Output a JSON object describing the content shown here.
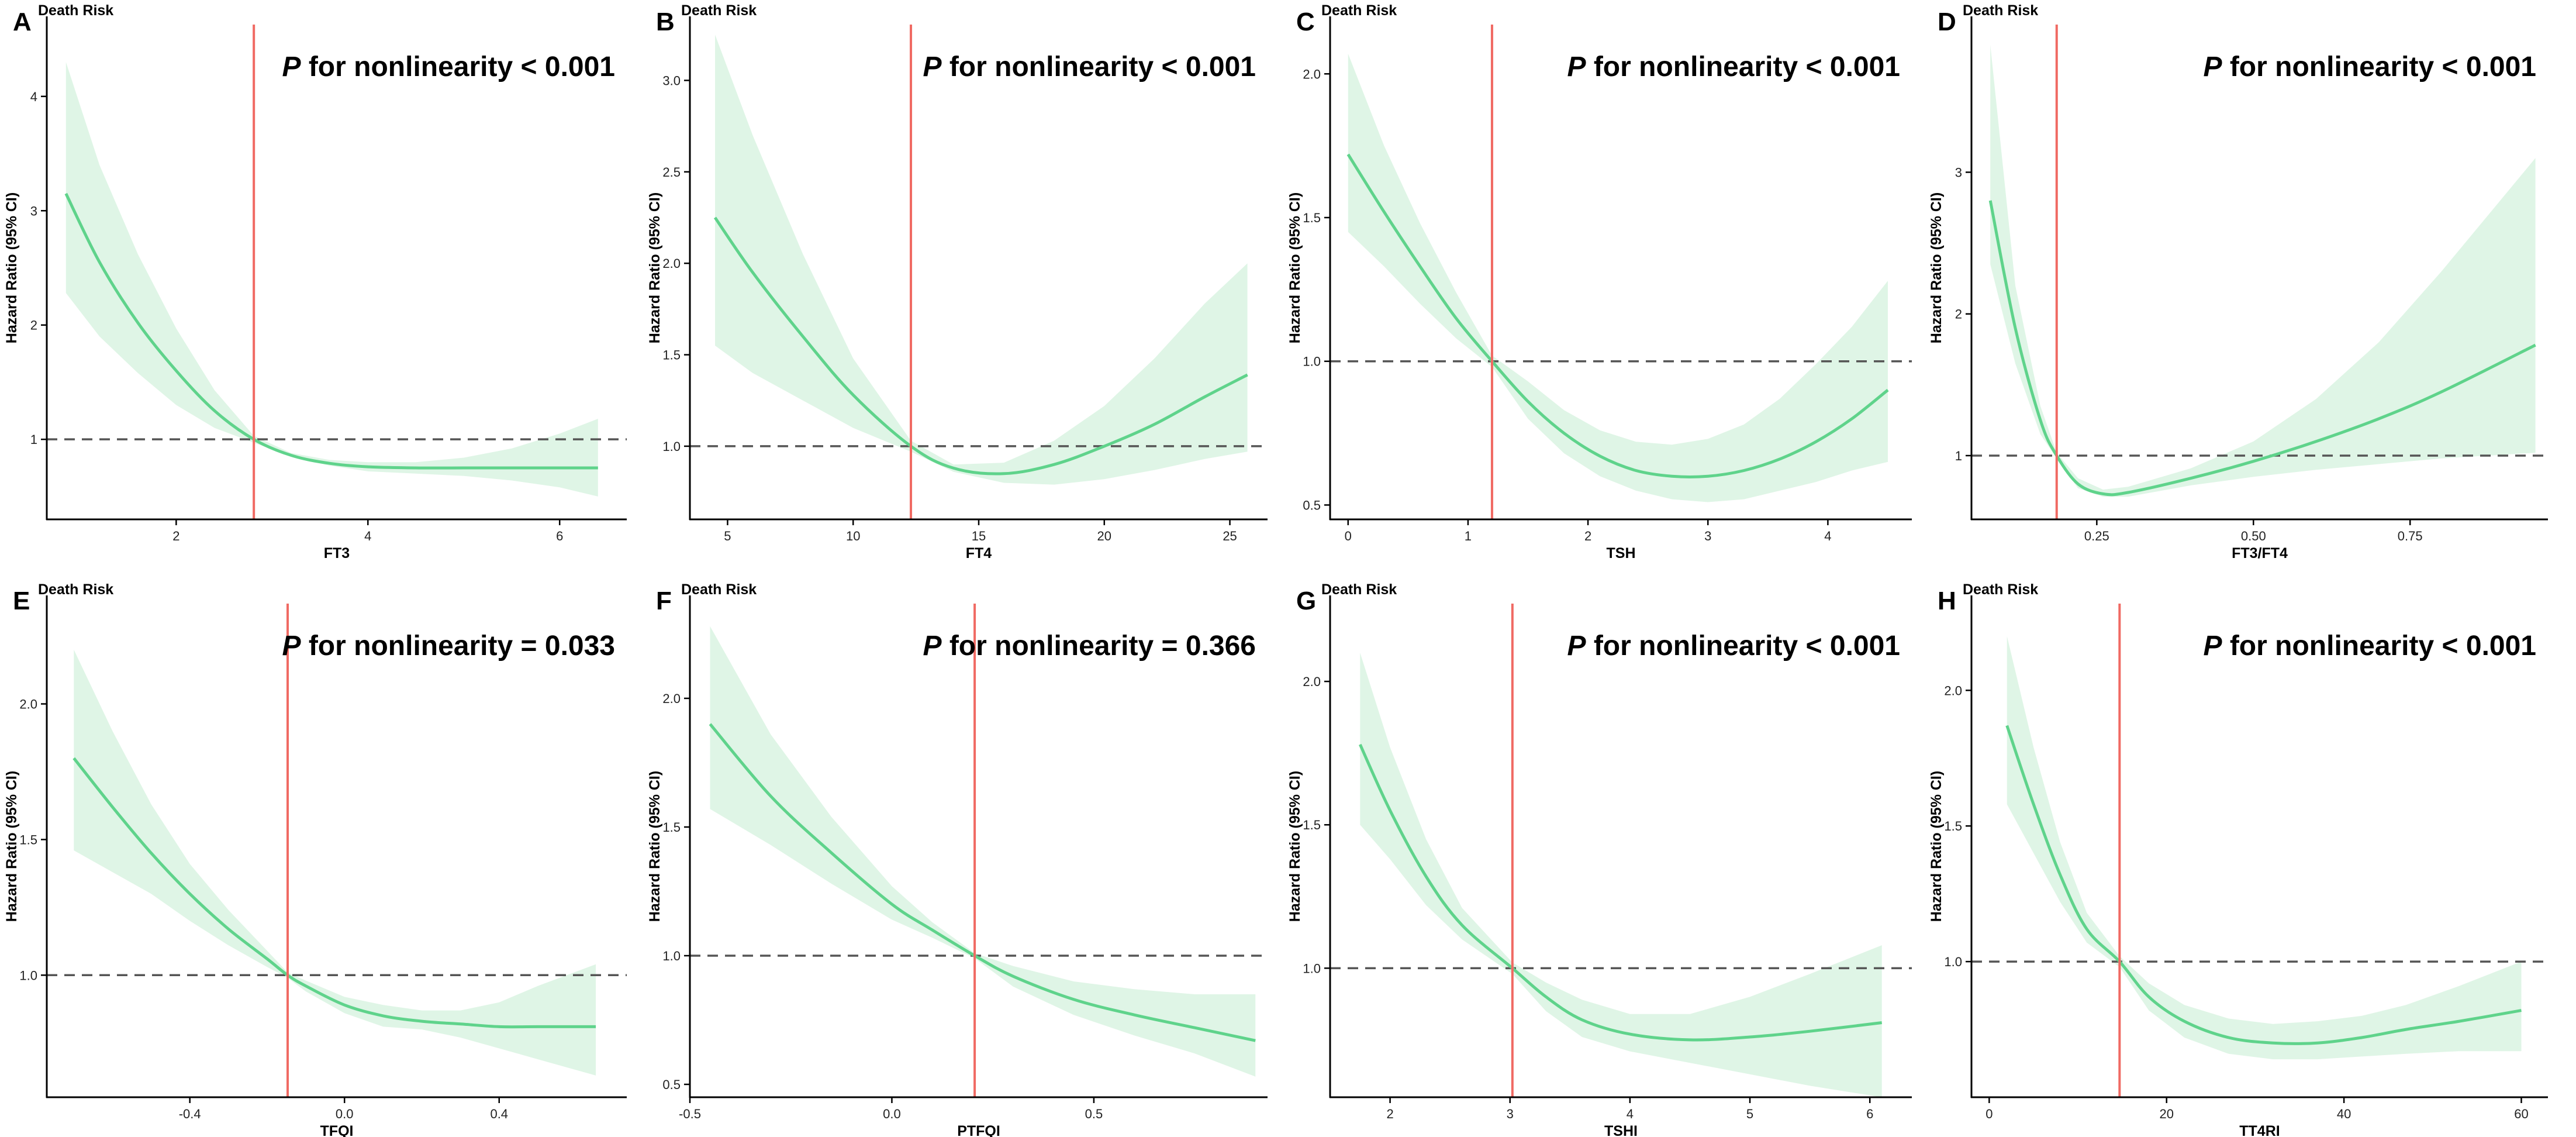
{
  "colors": {
    "curve": "#5fd38b",
    "band": "#dff5e6",
    "cutoff": "#f06a63",
    "reference": "#555555",
    "axis": "#000000"
  },
  "chart_data": [
    {
      "type": "line",
      "letter": "A",
      "title": "Death Risk",
      "xlabel": "FT3",
      "ylabel": "Hazard Ratio (95% CI)",
      "annotation": {
        "italic": "P",
        "text": " for nonlinearity < 0.001"
      },
      "xlim": [
        0.65,
        6.7
      ],
      "ylim": [
        0.3,
        4.7
      ],
      "xticks": [
        2,
        4,
        6
      ],
      "xtick_labels": [
        "2",
        "4",
        "6"
      ],
      "yticks": [
        1,
        2,
        3,
        4
      ],
      "ytick_labels": [
        "1",
        "2",
        "3",
        "4"
      ],
      "reference_y": 1.0,
      "cutoff_x": 2.81,
      "x": [
        0.85,
        1.2,
        1.6,
        2.0,
        2.4,
        2.81,
        3.2,
        3.6,
        4.0,
        4.5,
        5.0,
        5.5,
        6.0,
        6.4
      ],
      "y": [
        3.15,
        2.55,
        2.02,
        1.6,
        1.25,
        1.0,
        0.86,
        0.79,
        0.76,
        0.75,
        0.75,
        0.75,
        0.75,
        0.75
      ],
      "lower": [
        2.28,
        1.9,
        1.58,
        1.3,
        1.1,
        0.97,
        0.85,
        0.77,
        0.72,
        0.7,
        0.68,
        0.64,
        0.58,
        0.5
      ],
      "upper": [
        4.3,
        3.4,
        2.62,
        1.97,
        1.43,
        1.03,
        0.88,
        0.82,
        0.8,
        0.8,
        0.84,
        0.92,
        1.05,
        1.18
      ]
    },
    {
      "type": "line",
      "letter": "B",
      "title": "Death Risk",
      "xlabel": "FT4",
      "ylabel": "Hazard Ratio (95% CI)",
      "annotation": {
        "italic": "P",
        "text": " for nonlinearity < 0.001"
      },
      "xlim": [
        3.5,
        26.5
      ],
      "ylim": [
        0.6,
        3.35
      ],
      "xticks": [
        5,
        10,
        15,
        20,
        25
      ],
      "xtick_labels": [
        "5",
        "10",
        "15",
        "20",
        "25"
      ],
      "yticks": [
        1.0,
        1.5,
        2.0,
        2.5,
        3.0
      ],
      "ytick_labels": [
        "1.0",
        "1.5",
        "2.0",
        "2.5",
        "3.0"
      ],
      "reference_y": 1.0,
      "cutoff_x": 12.3,
      "x": [
        4.5,
        6,
        8,
        10,
        12.3,
        14,
        16,
        18,
        20,
        22,
        24,
        25.7
      ],
      "y": [
        2.25,
        1.95,
        1.6,
        1.28,
        1.0,
        0.88,
        0.85,
        0.9,
        1.0,
        1.12,
        1.27,
        1.39
      ],
      "lower": [
        1.55,
        1.4,
        1.25,
        1.1,
        0.97,
        0.86,
        0.8,
        0.79,
        0.82,
        0.87,
        0.93,
        0.97
      ],
      "upper": [
        3.25,
        2.7,
        2.05,
        1.48,
        1.03,
        0.9,
        0.91,
        1.03,
        1.22,
        1.48,
        1.78,
        2.0
      ]
    },
    {
      "type": "line",
      "letter": "C",
      "title": "Death Risk",
      "xlabel": "TSH",
      "ylabel": "Hazard Ratio (95% CI)",
      "annotation": {
        "italic": "P",
        "text": " for nonlinearity < 0.001"
      },
      "xlim": [
        -0.15,
        4.7
      ],
      "ylim": [
        0.45,
        2.2
      ],
      "xticks": [
        0,
        1,
        2,
        3,
        4
      ],
      "xtick_labels": [
        "0",
        "1",
        "2",
        "3",
        "4"
      ],
      "yticks": [
        0.5,
        1.0,
        1.5,
        2.0
      ],
      "ytick_labels": [
        "0.5",
        "1.0",
        "1.5",
        "2.0"
      ],
      "reference_y": 1.0,
      "cutoff_x": 1.2,
      "x": [
        0,
        0.3,
        0.6,
        0.9,
        1.2,
        1.5,
        1.8,
        2.1,
        2.4,
        2.7,
        3.0,
        3.3,
        3.6,
        3.9,
        4.2,
        4.5
      ],
      "y": [
        1.72,
        1.52,
        1.33,
        1.15,
        1.0,
        0.86,
        0.75,
        0.67,
        0.62,
        0.6,
        0.6,
        0.62,
        0.66,
        0.72,
        0.8,
        0.9
      ],
      "lower": [
        1.45,
        1.33,
        1.2,
        1.08,
        0.98,
        0.8,
        0.68,
        0.6,
        0.55,
        0.52,
        0.51,
        0.52,
        0.55,
        0.58,
        0.62,
        0.65
      ],
      "upper": [
        2.07,
        1.75,
        1.48,
        1.24,
        1.02,
        0.93,
        0.83,
        0.76,
        0.72,
        0.71,
        0.73,
        0.78,
        0.87,
        0.99,
        1.12,
        1.28
      ]
    },
    {
      "type": "line",
      "letter": "D",
      "title": "Death Risk",
      "xlabel": "FT3/FT4",
      "ylabel": "Hazard Ratio (95% CI)",
      "annotation": {
        "italic": "P",
        "text": " for nonlinearity < 0.001"
      },
      "xlim": [
        0.05,
        0.97
      ],
      "ylim": [
        0.55,
        4.1
      ],
      "xticks": [
        0.25,
        0.5,
        0.75
      ],
      "xtick_labels": [
        "0.25",
        "0.50",
        "0.75"
      ],
      "yticks": [
        1,
        2,
        3
      ],
      "ytick_labels": [
        "1",
        "2",
        "3"
      ],
      "reference_y": 1.0,
      "cutoff_x": 0.186,
      "x": [
        0.08,
        0.12,
        0.16,
        0.186,
        0.22,
        0.26,
        0.3,
        0.4,
        0.5,
        0.6,
        0.7,
        0.8,
        0.95
      ],
      "y": [
        2.8,
        1.9,
        1.25,
        1.0,
        0.8,
        0.73,
        0.74,
        0.84,
        0.96,
        1.1,
        1.26,
        1.45,
        1.78
      ],
      "lower": [
        2.35,
        1.65,
        1.15,
        0.98,
        0.77,
        0.71,
        0.71,
        0.79,
        0.85,
        0.9,
        0.94,
        0.98,
        1.02
      ],
      "upper": [
        3.9,
        2.2,
        1.35,
        1.02,
        0.84,
        0.76,
        0.78,
        0.91,
        1.1,
        1.4,
        1.8,
        2.3,
        3.1
      ]
    },
    {
      "type": "line",
      "letter": "E",
      "title": "Death Risk",
      "xlabel": "TFQI",
      "ylabel": "Hazard Ratio (95% CI)",
      "annotation": {
        "italic": "P",
        "text": " for nonlinearity = 0.033"
      },
      "xlim": [
        -0.77,
        0.73
      ],
      "ylim": [
        0.55,
        2.4
      ],
      "xticks": [
        -0.4,
        0.0,
        0.4
      ],
      "xtick_labels": [
        "-0.4",
        "0.0",
        "0.4"
      ],
      "yticks": [
        1.0,
        1.5,
        2.0
      ],
      "ytick_labels": [
        "1.0",
        "1.5",
        "2.0"
      ],
      "reference_y": 1.0,
      "cutoff_x": -0.147,
      "x": [
        -0.7,
        -0.6,
        -0.5,
        -0.4,
        -0.3,
        -0.2,
        -0.147,
        -0.1,
        0.0,
        0.1,
        0.2,
        0.3,
        0.4,
        0.5,
        0.65
      ],
      "y": [
        1.8,
        1.62,
        1.45,
        1.3,
        1.17,
        1.06,
        1.0,
        0.96,
        0.89,
        0.85,
        0.83,
        0.82,
        0.81,
        0.81,
        0.81
      ],
      "lower": [
        1.46,
        1.38,
        1.3,
        1.2,
        1.11,
        1.03,
        0.99,
        0.94,
        0.86,
        0.81,
        0.8,
        0.77,
        0.73,
        0.69,
        0.63
      ],
      "upper": [
        2.2,
        1.9,
        1.63,
        1.41,
        1.24,
        1.09,
        1.01,
        0.98,
        0.92,
        0.89,
        0.87,
        0.87,
        0.9,
        0.96,
        1.04
      ]
    },
    {
      "type": "line",
      "letter": "F",
      "title": "Death Risk",
      "xlabel": "PTFQI",
      "ylabel": "Hazard Ratio (95% CI)",
      "annotation": {
        "italic": "P",
        "text": " for nonlinearity = 0.366"
      },
      "xlim": [
        -0.5,
        0.93
      ],
      "ylim": [
        0.45,
        2.4
      ],
      "xticks": [
        -0.5,
        0.0,
        0.5
      ],
      "xtick_labels": [
        "-0.5",
        "0.0",
        "0.5"
      ],
      "yticks": [
        0.5,
        1.0,
        1.5,
        2.0
      ],
      "ytick_labels": [
        "0.5",
        "1.0",
        "1.5",
        "2.0"
      ],
      "reference_y": 1.0,
      "cutoff_x": 0.205,
      "x": [
        -0.45,
        -0.3,
        -0.15,
        0.0,
        0.1,
        0.205,
        0.3,
        0.45,
        0.6,
        0.75,
        0.9
      ],
      "y": [
        1.9,
        1.62,
        1.4,
        1.2,
        1.1,
        1.0,
        0.92,
        0.83,
        0.77,
        0.72,
        0.67
      ],
      "lower": [
        1.57,
        1.43,
        1.28,
        1.14,
        1.07,
        0.99,
        0.88,
        0.77,
        0.69,
        0.62,
        0.53
      ],
      "upper": [
        2.28,
        1.86,
        1.54,
        1.27,
        1.13,
        1.01,
        0.96,
        0.9,
        0.87,
        0.85,
        0.85
      ]
    },
    {
      "type": "line",
      "letter": "G",
      "title": "Death Risk",
      "xlabel": "TSHI",
      "ylabel": "Hazard Ratio (95% CI)",
      "annotation": {
        "italic": "P",
        "text": " for nonlinearity < 0.001"
      },
      "xlim": [
        1.5,
        6.35
      ],
      "ylim": [
        0.55,
        2.3
      ],
      "xticks": [
        2,
        3,
        4,
        5,
        6
      ],
      "xtick_labels": [
        "2",
        "3",
        "4",
        "5",
        "6"
      ],
      "yticks": [
        1.0,
        1.5,
        2.0
      ],
      "ytick_labels": [
        "1.0",
        "1.5",
        "2.0"
      ],
      "reference_y": 1.0,
      "cutoff_x": 3.02,
      "x": [
        1.75,
        2.0,
        2.3,
        2.6,
        3.02,
        3.3,
        3.6,
        4.0,
        4.5,
        5.0,
        5.5,
        6.1
      ],
      "y": [
        1.78,
        1.55,
        1.32,
        1.15,
        1.0,
        0.9,
        0.82,
        0.77,
        0.75,
        0.76,
        0.78,
        0.81
      ],
      "lower": [
        1.5,
        1.38,
        1.22,
        1.1,
        0.98,
        0.85,
        0.76,
        0.71,
        0.67,
        0.63,
        0.59,
        0.55
      ],
      "upper": [
        2.1,
        1.77,
        1.45,
        1.21,
        1.02,
        0.95,
        0.89,
        0.84,
        0.84,
        0.9,
        0.98,
        1.08
      ]
    },
    {
      "type": "line",
      "letter": "H",
      "title": "Death Risk",
      "xlabel": "TT4RI",
      "ylabel": "Hazard Ratio (95% CI)",
      "annotation": {
        "italic": "P",
        "text": " for nonlinearity < 0.001"
      },
      "xlim": [
        -2,
        63
      ],
      "ylim": [
        0.5,
        2.35
      ],
      "xticks": [
        0,
        20,
        40,
        60
      ],
      "xtick_labels": [
        "0",
        "20",
        "40",
        "60"
      ],
      "yticks": [
        1.0,
        1.5,
        2.0
      ],
      "ytick_labels": [
        "1.0",
        "1.5",
        "2.0"
      ],
      "reference_y": 1.0,
      "cutoff_x": 14.7,
      "x": [
        2,
        5,
        8,
        11,
        14.7,
        18,
        22,
        27,
        32,
        37,
        42,
        47,
        53,
        60
      ],
      "y": [
        1.87,
        1.58,
        1.32,
        1.12,
        1.0,
        0.87,
        0.78,
        0.72,
        0.7,
        0.7,
        0.72,
        0.75,
        0.78,
        0.82
      ],
      "lower": [
        1.58,
        1.4,
        1.22,
        1.07,
        0.98,
        0.82,
        0.72,
        0.66,
        0.64,
        0.64,
        0.65,
        0.66,
        0.67,
        0.67
      ],
      "upper": [
        2.2,
        1.79,
        1.44,
        1.18,
        1.02,
        0.92,
        0.84,
        0.79,
        0.77,
        0.78,
        0.8,
        0.84,
        0.91,
        1.0
      ]
    }
  ]
}
